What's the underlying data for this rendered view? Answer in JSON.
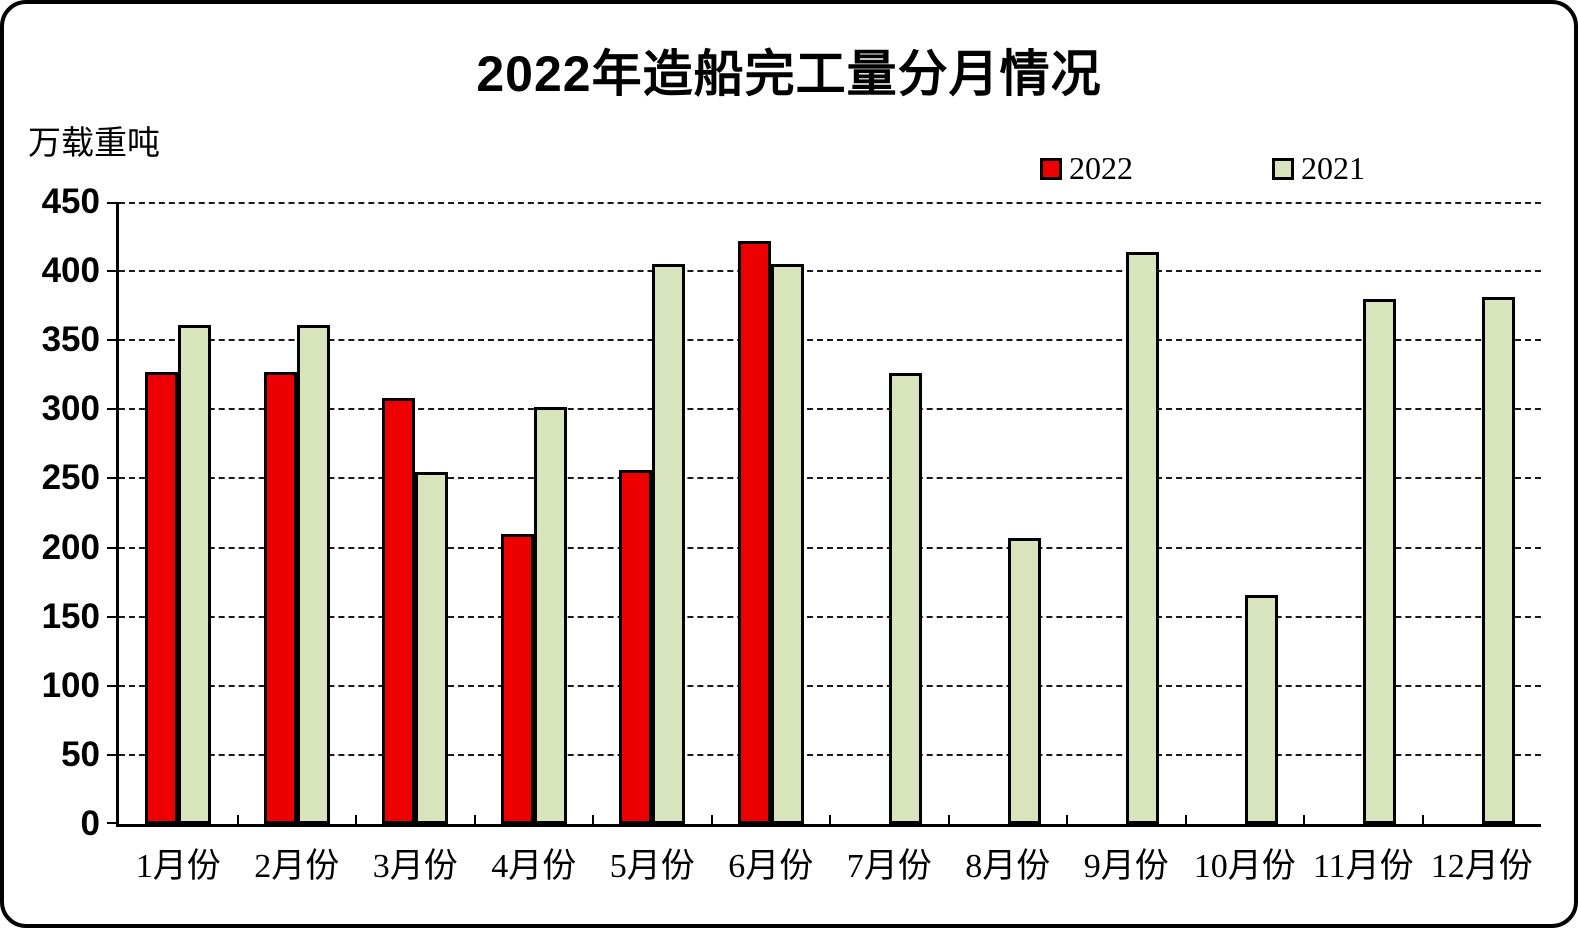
{
  "header": {
    "title": "2022年造船完工量分月情况"
  },
  "y_axis_unit": "万载重吨",
  "chart_data": {
    "type": "bar",
    "title": "2022年造船完工量分月情况",
    "ylabel": "万载重吨",
    "xlabel": "",
    "ylim": [
      0,
      450
    ],
    "ytick_step": 50,
    "ytick_labels": [
      450,
      400,
      350,
      300,
      250,
      200,
      150,
      100,
      50,
      0
    ],
    "grid": "horizontal-dashed",
    "legend_position": "top-right",
    "categories": [
      "1月份",
      "2月份",
      "3月份",
      "4月份",
      "5月份",
      "6月份",
      "7月份",
      "8月份",
      "9月份",
      "10月份",
      "11月份",
      "12月份"
    ],
    "series": [
      {
        "name": "2022",
        "color": "#ee0000",
        "values": [
          327,
          327,
          308,
          210,
          256,
          422,
          null,
          null,
          null,
          null,
          null,
          null
        ]
      },
      {
        "name": "2021",
        "color": "#d8e4bc",
        "values": [
          361,
          361,
          255,
          302,
          405,
          405,
          326,
          207,
          414,
          166,
          380,
          381
        ]
      }
    ]
  }
}
